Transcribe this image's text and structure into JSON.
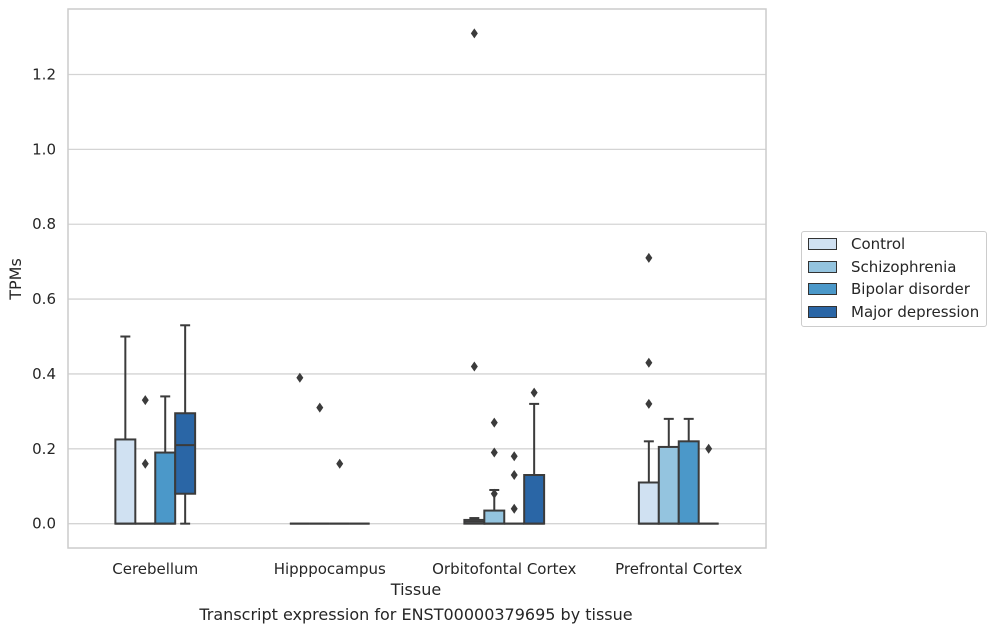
{
  "chart_data": {
    "type": "box",
    "xlabel": "Tissue",
    "ylabel": "TPMs",
    "ylim": [
      -0.065,
      1.375
    ],
    "yticks": [
      "0.0",
      "0.2",
      "0.4",
      "0.6",
      "0.8",
      "1.0",
      "1.2"
    ],
    "grid": "horizontal",
    "legend_position": "right",
    "categories": [
      "Cerebellum",
      "Hipppocampus",
      "Orbitofontal Cortex",
      "Prefrontal Cortex"
    ],
    "series": [
      {
        "name": "Control",
        "color": "#d0e1f2",
        "boxes": [
          {
            "min": 0,
            "q1": 0,
            "median": 0,
            "q3": 0.225,
            "max": 0.5,
            "outliers": []
          },
          {
            "min": 0,
            "q1": 0,
            "median": 0,
            "q3": 0,
            "max": 0,
            "outliers": [
              0.39
            ]
          },
          {
            "min": 0,
            "q1": 0,
            "median": 0.005,
            "q3": 0.01,
            "max": 0.015,
            "outliers": [
              0.42,
              1.31
            ]
          },
          {
            "min": 0,
            "q1": 0,
            "median": 0,
            "q3": 0.11,
            "max": 0.22,
            "outliers": [
              0.32,
              0.43,
              0.71
            ]
          }
        ]
      },
      {
        "name": "Schizophrenia",
        "color": "#94c4df",
        "boxes": [
          {
            "min": 0,
            "q1": 0,
            "median": 0,
            "q3": 0,
            "max": 0,
            "outliers": [
              0.16,
              0.33
            ]
          },
          {
            "min": 0,
            "q1": 0,
            "median": 0,
            "q3": 0,
            "max": 0,
            "outliers": [
              0.31
            ]
          },
          {
            "min": 0,
            "q1": 0,
            "median": 0,
            "q3": 0.035,
            "max": 0.09,
            "outliers": [
              0.08,
              0.19,
              0.27
            ]
          },
          {
            "min": 0,
            "q1": 0,
            "median": 0,
            "q3": 0.205,
            "max": 0.28,
            "outliers": []
          }
        ]
      },
      {
        "name": "Bipolar disorder",
        "color": "#4b98c9",
        "boxes": [
          {
            "min": 0,
            "q1": 0,
            "median": 0,
            "q3": 0.19,
            "max": 0.34,
            "outliers": []
          },
          {
            "min": 0,
            "q1": 0,
            "median": 0,
            "q3": 0,
            "max": 0,
            "outliers": [
              0.16
            ]
          },
          {
            "min": 0,
            "q1": 0,
            "median": 0,
            "q3": 0,
            "max": 0,
            "outliers": [
              0.04,
              0.13,
              0.18
            ]
          },
          {
            "min": 0,
            "q1": 0,
            "median": 0,
            "q3": 0.22,
            "max": 0.28,
            "outliers": []
          }
        ]
      },
      {
        "name": "Major depression",
        "color": "#2a66a6",
        "boxes": [
          {
            "min": 0,
            "q1": 0.08,
            "median": 0.21,
            "q3": 0.295,
            "max": 0.53,
            "outliers": []
          },
          {
            "min": 0,
            "q1": 0,
            "median": 0,
            "q3": 0,
            "max": 0,
            "outliers": []
          },
          {
            "min": 0,
            "q1": 0,
            "median": 0,
            "q3": 0.13,
            "max": 0.32,
            "outliers": [
              0.35
            ]
          },
          {
            "min": 0,
            "q1": 0,
            "median": 0,
            "q3": 0,
            "max": 0,
            "outliers": [
              0.2
            ]
          }
        ]
      }
    ]
  },
  "caption": "Transcript expression for ENST00000379695 by tissue"
}
